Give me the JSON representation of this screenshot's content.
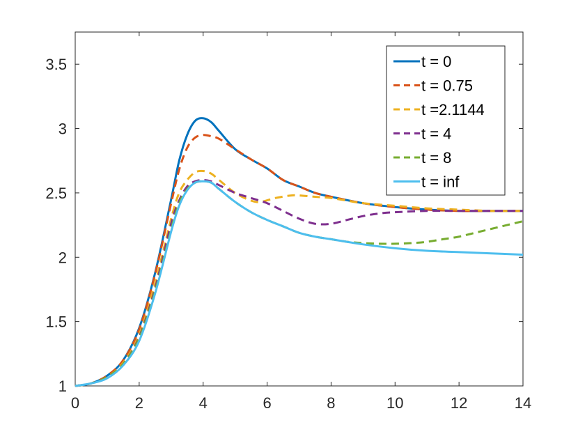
{
  "chart_data": {
    "type": "line",
    "title": "",
    "xlabel": "",
    "ylabel": "",
    "xlim": [
      0,
      14
    ],
    "ylim": [
      1,
      3.75
    ],
    "xticks": [
      0,
      2,
      4,
      6,
      8,
      10,
      12,
      14
    ],
    "yticks": [
      1,
      1.5,
      2,
      2.5,
      3,
      3.5
    ],
    "xtick_labels": [
      "0",
      "2",
      "4",
      "6",
      "8",
      "10",
      "12",
      "14"
    ],
    "ytick_labels": [
      "1",
      "1.5",
      "2",
      "2.5",
      "3",
      "3.5"
    ],
    "grid": false,
    "legend_position": "top-right",
    "series": [
      {
        "name": "t = 0",
        "color": "#0072BD",
        "dash": "solid",
        "x": [
          0,
          0.5,
          1,
          1.5,
          2,
          2.5,
          3,
          3.25,
          3.5,
          3.75,
          4,
          4.25,
          4.5,
          5,
          5.5,
          6,
          6.5,
          7,
          7.5,
          8,
          9,
          10,
          11,
          12,
          13,
          14
        ],
        "y": [
          1,
          1.02,
          1.08,
          1.2,
          1.45,
          1.88,
          2.45,
          2.75,
          2.95,
          3.06,
          3.08,
          3.05,
          2.98,
          2.84,
          2.76,
          2.69,
          2.6,
          2.55,
          2.5,
          2.47,
          2.42,
          2.39,
          2.37,
          2.36,
          2.36,
          2.36
        ]
      },
      {
        "name": "t = 0.75",
        "color": "#D95319",
        "dash": "dashed",
        "x": [
          0,
          0.5,
          1,
          1.5,
          2,
          2.5,
          3,
          3.25,
          3.5,
          3.75,
          4,
          4.25,
          4.5,
          5,
          5.5,
          6,
          6.5,
          7,
          7.5,
          8,
          9,
          10,
          11,
          12,
          13,
          14
        ],
        "y": [
          1,
          1.02,
          1.08,
          1.2,
          1.44,
          1.87,
          2.42,
          2.68,
          2.85,
          2.93,
          2.95,
          2.94,
          2.92,
          2.84,
          2.76,
          2.69,
          2.6,
          2.55,
          2.5,
          2.47,
          2.42,
          2.39,
          2.37,
          2.36,
          2.36,
          2.36
        ]
      },
      {
        "name": "t =2.1144",
        "color": "#EDB120",
        "dash": "dashed",
        "x": [
          0,
          0.5,
          1,
          1.5,
          2,
          2.5,
          3,
          3.25,
          3.5,
          3.75,
          4,
          4.25,
          4.5,
          5,
          5.5,
          5.8,
          6.25,
          6.75,
          7,
          7.5,
          8,
          8.5,
          9,
          10,
          11,
          12,
          13,
          14
        ],
        "y": [
          1,
          1.02,
          1.07,
          1.18,
          1.4,
          1.8,
          2.3,
          2.5,
          2.6,
          2.66,
          2.67,
          2.65,
          2.6,
          2.5,
          2.44,
          2.43,
          2.46,
          2.48,
          2.48,
          2.47,
          2.46,
          2.44,
          2.42,
          2.4,
          2.38,
          2.37,
          2.36,
          2.36
        ]
      },
      {
        "name": "t = 4",
        "color": "#7E2F8E",
        "dash": "dashed",
        "x": [
          0,
          0.5,
          1,
          1.5,
          2,
          2.5,
          3,
          3.25,
          3.5,
          3.75,
          4,
          4.25,
          4.5,
          5,
          5.5,
          6,
          6.5,
          7,
          7.5,
          8,
          8.5,
          9,
          9.5,
          10,
          11,
          12,
          13,
          14
        ],
        "y": [
          1,
          1.02,
          1.07,
          1.17,
          1.38,
          1.76,
          2.26,
          2.44,
          2.55,
          2.59,
          2.6,
          2.59,
          2.56,
          2.5,
          2.46,
          2.42,
          2.36,
          2.3,
          2.26,
          2.26,
          2.29,
          2.32,
          2.34,
          2.35,
          2.36,
          2.36,
          2.36,
          2.36
        ]
      },
      {
        "name": "t = 8",
        "color": "#77AC30",
        "dash": "dashed",
        "x": [
          0,
          0.5,
          1,
          1.5,
          2,
          2.5,
          3,
          3.25,
          3.5,
          3.75,
          4,
          4.25,
          4.5,
          5,
          5.5,
          6,
          6.5,
          7,
          7.5,
          8,
          8.5,
          9,
          9.5,
          10,
          10.5,
          11,
          11.5,
          12,
          12.5,
          13,
          13.5,
          14
        ],
        "y": [
          1,
          1.02,
          1.07,
          1.17,
          1.37,
          1.74,
          2.22,
          2.42,
          2.53,
          2.58,
          2.59,
          2.58,
          2.53,
          2.43,
          2.35,
          2.29,
          2.24,
          2.19,
          2.16,
          2.14,
          2.12,
          2.11,
          2.105,
          2.105,
          2.11,
          2.12,
          2.14,
          2.16,
          2.19,
          2.22,
          2.25,
          2.28
        ]
      },
      {
        "name": "t = inf",
        "color": "#4DBEEE",
        "dash": "solid",
        "x": [
          0,
          0.5,
          1,
          1.5,
          2,
          2.5,
          3,
          3.25,
          3.5,
          3.75,
          4,
          4.25,
          4.5,
          5,
          5.5,
          6,
          6.5,
          7,
          7.5,
          8,
          9,
          10,
          11,
          12,
          13,
          14
        ],
        "y": [
          1,
          1.02,
          1.06,
          1.16,
          1.35,
          1.72,
          2.2,
          2.4,
          2.52,
          2.58,
          2.59,
          2.58,
          2.53,
          2.43,
          2.35,
          2.29,
          2.24,
          2.19,
          2.16,
          2.14,
          2.1,
          2.07,
          2.05,
          2.04,
          2.03,
          2.02
        ]
      }
    ]
  }
}
